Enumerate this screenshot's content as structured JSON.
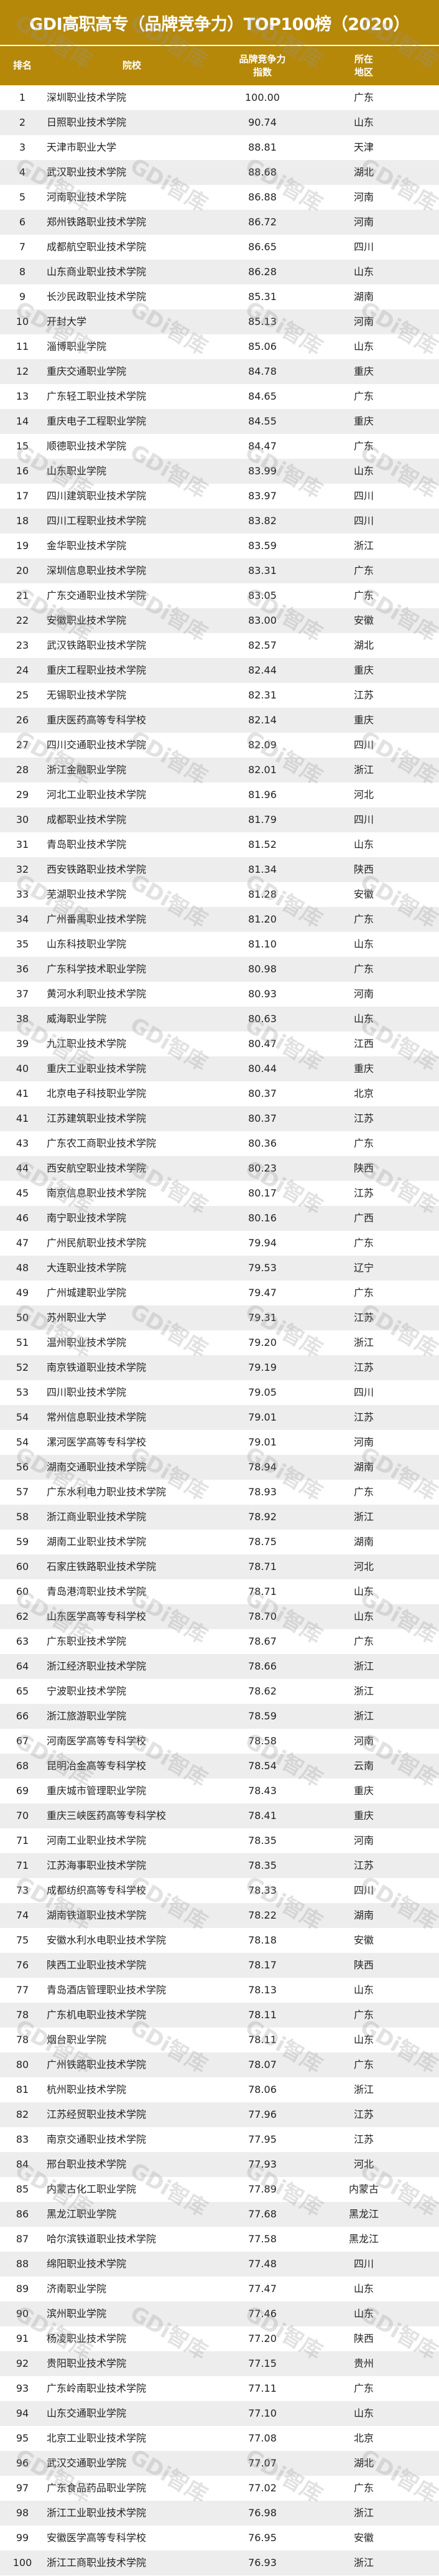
{
  "title": "GDI高职高专（品牌竞争力）TOP100榜（2020）",
  "watermark": "GDi智库",
  "colors": {
    "header_bg": "#b5880a",
    "header_text": "#ffffff",
    "stripe": "#ededed"
  },
  "columns": {
    "rank": "排名",
    "school": "院校",
    "score": "品牌竞争力指数",
    "region": "所在地区"
  },
  "rows": [
    [
      "1",
      "深圳职业技术学院",
      "100.00",
      "广东"
    ],
    [
      "2",
      "日照职业技术学院",
      "90.74",
      "山东"
    ],
    [
      "3",
      "天津市职业大学",
      "88.81",
      "天津"
    ],
    [
      "4",
      "武汉职业技术学院",
      "88.68",
      "湖北"
    ],
    [
      "5",
      "河南职业技术学院",
      "86.88",
      "河南"
    ],
    [
      "6",
      "郑州铁路职业技术学院",
      "86.72",
      "河南"
    ],
    [
      "7",
      "成都航空职业技术学院",
      "86.65",
      "四川"
    ],
    [
      "8",
      "山东商业职业技术学院",
      "86.28",
      "山东"
    ],
    [
      "9",
      "长沙民政职业技术学院",
      "85.31",
      "湖南"
    ],
    [
      "10",
      "开封大学",
      "85.13",
      "河南"
    ],
    [
      "11",
      "淄博职业学院",
      "85.06",
      "山东"
    ],
    [
      "12",
      "重庆交通职业学院",
      "84.78",
      "重庆"
    ],
    [
      "13",
      "广东轻工职业技术学院",
      "84.65",
      "广东"
    ],
    [
      "14",
      "重庆电子工程职业学院",
      "84.55",
      "重庆"
    ],
    [
      "15",
      "顺德职业技术学院",
      "84.47",
      "广东"
    ],
    [
      "16",
      "山东职业学院",
      "83.99",
      "山东"
    ],
    [
      "17",
      "四川建筑职业技术学院",
      "83.97",
      "四川"
    ],
    [
      "18",
      "四川工程职业技术学院",
      "83.82",
      "四川"
    ],
    [
      "19",
      "金华职业技术学院",
      "83.59",
      "浙江"
    ],
    [
      "20",
      "深圳信息职业技术学院",
      "83.31",
      "广东"
    ],
    [
      "21",
      "广东交通职业技术学院",
      "83.05",
      "广东"
    ],
    [
      "22",
      "安徽职业技术学院",
      "83.00",
      "安徽"
    ],
    [
      "23",
      "武汉铁路职业技术学院",
      "82.57",
      "湖北"
    ],
    [
      "24",
      "重庆工程职业技术学院",
      "82.44",
      "重庆"
    ],
    [
      "25",
      "无锡职业技术学院",
      "82.31",
      "江苏"
    ],
    [
      "26",
      "重庆医药高等专科学校",
      "82.14",
      "重庆"
    ],
    [
      "27",
      "四川交通职业技术学院",
      "82.09",
      "四川"
    ],
    [
      "28",
      "浙江金融职业学院",
      "82.01",
      "浙江"
    ],
    [
      "29",
      "河北工业职业技术学院",
      "81.96",
      "河北"
    ],
    [
      "30",
      "成都职业技术学院",
      "81.79",
      "四川"
    ],
    [
      "31",
      "青岛职业技术学院",
      "81.52",
      "山东"
    ],
    [
      "32",
      "西安铁路职业技术学院",
      "81.34",
      "陕西"
    ],
    [
      "33",
      "芜湖职业技术学院",
      "81.28",
      "安徽"
    ],
    [
      "34",
      "广州番禺职业技术学院",
      "81.20",
      "广东"
    ],
    [
      "35",
      "山东科技职业学院",
      "81.10",
      "山东"
    ],
    [
      "36",
      "广东科学技术职业学院",
      "80.98",
      "广东"
    ],
    [
      "37",
      "黄河水利职业技术学院",
      "80.93",
      "河南"
    ],
    [
      "38",
      "威海职业学院",
      "80.63",
      "山东"
    ],
    [
      "39",
      "九江职业技术学院",
      "80.47",
      "江西"
    ],
    [
      "40",
      "重庆工业职业技术学院",
      "80.44",
      "重庆"
    ],
    [
      "41",
      "北京电子科技职业学院",
      "80.37",
      "北京"
    ],
    [
      "41",
      "江苏建筑职业技术学院",
      "80.37",
      "江苏"
    ],
    [
      "43",
      "广东农工商职业技术学院",
      "80.36",
      "广东"
    ],
    [
      "44",
      "西安航空职业技术学院",
      "80.23",
      "陕西"
    ],
    [
      "45",
      "南京信息职业技术学院",
      "80.17",
      "江苏"
    ],
    [
      "46",
      "南宁职业技术学院",
      "80.16",
      "广西"
    ],
    [
      "47",
      "广州民航职业技术学院",
      "79.94",
      "广东"
    ],
    [
      "48",
      "大连职业技术学院",
      "79.53",
      "辽宁"
    ],
    [
      "49",
      "广州城建职业学院",
      "79.47",
      "广东"
    ],
    [
      "50",
      "苏州职业大学",
      "79.31",
      "江苏"
    ],
    [
      "51",
      "温州职业技术学院",
      "79.20",
      "浙江"
    ],
    [
      "52",
      "南京铁道职业技术学院",
      "79.19",
      "江苏"
    ],
    [
      "53",
      "四川职业技术学院",
      "79.05",
      "四川"
    ],
    [
      "54",
      "常州信息职业技术学院",
      "79.01",
      "江苏"
    ],
    [
      "54",
      "漯河医学高等专科学校",
      "79.01",
      "河南"
    ],
    [
      "56",
      "湖南交通职业技术学院",
      "78.94",
      "湖南"
    ],
    [
      "57",
      "广东水利电力职业技术学院",
      "78.93",
      "广东"
    ],
    [
      "58",
      "浙江商业职业技术学院",
      "78.92",
      "浙江"
    ],
    [
      "59",
      "湖南工业职业技术学院",
      "78.75",
      "湖南"
    ],
    [
      "60",
      "石家庄铁路职业技术学院",
      "78.71",
      "河北"
    ],
    [
      "60",
      "青岛港湾职业技术学院",
      "78.71",
      "山东"
    ],
    [
      "62",
      "山东医学高等专科学校",
      "78.70",
      "山东"
    ],
    [
      "63",
      "广东职业技术学院",
      "78.67",
      "广东"
    ],
    [
      "64",
      "浙江经济职业技术学院",
      "78.66",
      "浙江"
    ],
    [
      "65",
      "宁波职业技术学院",
      "78.62",
      "浙江"
    ],
    [
      "66",
      "浙江旅游职业学院",
      "78.59",
      "浙江"
    ],
    [
      "67",
      "河南医学高等专科学校",
      "78.58",
      "河南"
    ],
    [
      "68",
      "昆明冶金高等专科学校",
      "78.54",
      "云南"
    ],
    [
      "69",
      "重庆城市管理职业学院",
      "78.43",
      "重庆"
    ],
    [
      "70",
      "重庆三峡医药高等专科学校",
      "78.41",
      "重庆"
    ],
    [
      "71",
      "河南工业职业技术学院",
      "78.35",
      "河南"
    ],
    [
      "71",
      "江苏海事职业技术学院",
      "78.35",
      "江苏"
    ],
    [
      "73",
      "成都纺织高等专科学校",
      "78.33",
      "四川"
    ],
    [
      "74",
      "湖南铁道职业技术学院",
      "78.22",
      "湖南"
    ],
    [
      "75",
      "安徽水利水电职业技术学院",
      "78.18",
      "安徽"
    ],
    [
      "76",
      "陕西工业职业技术学院",
      "78.17",
      "陕西"
    ],
    [
      "77",
      "青岛酒店管理职业技术学院",
      "78.13",
      "山东"
    ],
    [
      "78",
      "广东机电职业技术学院",
      "78.11",
      "广东"
    ],
    [
      "78",
      "烟台职业学院",
      "78.11",
      "山东"
    ],
    [
      "80",
      "广州铁路职业技术学院",
      "78.07",
      "广东"
    ],
    [
      "81",
      "杭州职业技术学院",
      "78.06",
      "浙江"
    ],
    [
      "82",
      "江苏经贸职业技术学院",
      "77.96",
      "江苏"
    ],
    [
      "83",
      "南京交通职业技术学院",
      "77.95",
      "江苏"
    ],
    [
      "84",
      "邢台职业技术学院",
      "77.93",
      "河北"
    ],
    [
      "85",
      "内蒙古化工职业学院",
      "77.89",
      "内蒙古"
    ],
    [
      "86",
      "黑龙江职业学院",
      "77.68",
      "黑龙江"
    ],
    [
      "87",
      "哈尔滨铁道职业技术学院",
      "77.58",
      "黑龙江"
    ],
    [
      "88",
      "绵阳职业技术学院",
      "77.48",
      "四川"
    ],
    [
      "89",
      "济南职业学院",
      "77.47",
      "山东"
    ],
    [
      "90",
      "滨州职业学院",
      "77.46",
      "山东"
    ],
    [
      "91",
      "杨凌职业技术学院",
      "77.20",
      "陕西"
    ],
    [
      "92",
      "贵阳职业技术学院",
      "77.15",
      "贵州"
    ],
    [
      "93",
      "广东岭南职业技术学院",
      "77.11",
      "广东"
    ],
    [
      "94",
      "山东交通职业学院",
      "77.10",
      "山东"
    ],
    [
      "95",
      "北京工业职业技术学院",
      "77.08",
      "北京"
    ],
    [
      "96",
      "武汉交通职业学院",
      "77.07",
      "湖北"
    ],
    [
      "97",
      "广东食品药品职业学院",
      "77.02",
      "广东"
    ],
    [
      "98",
      "浙江工业职业技术学院",
      "76.98",
      "浙江"
    ],
    [
      "99",
      "安徽医学高等专科学校",
      "76.95",
      "安徽"
    ],
    [
      "100",
      "浙江工商职业技术学院",
      "76.93",
      "浙江"
    ]
  ]
}
